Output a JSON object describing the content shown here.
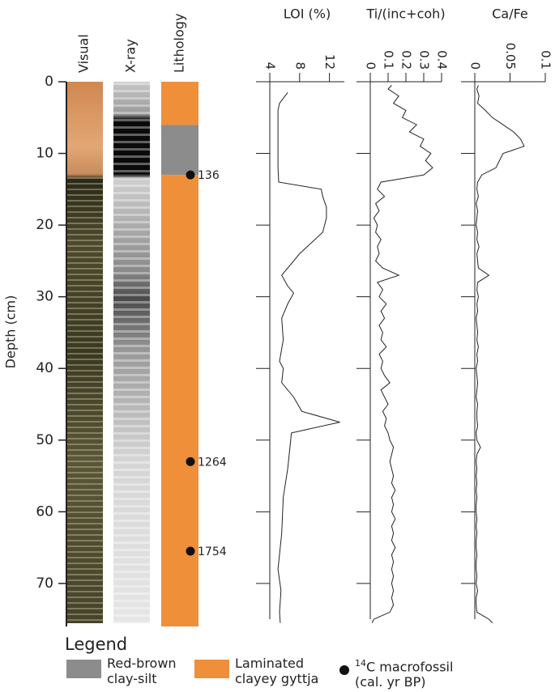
{
  "depth_axis": {
    "label": "Depth (cm)",
    "ylim": [
      0,
      76
    ],
    "yticks": [
      0,
      10,
      20,
      30,
      40,
      50,
      60,
      70
    ]
  },
  "core_columns": [
    "Visual",
    "X-ray",
    "Lithology"
  ],
  "lithology": {
    "classes": [
      {
        "name": "Red-brown clay-silt",
        "color": "#8c8c8c",
        "intervals": [
          [
            6,
            13
          ]
        ]
      },
      {
        "name": "Laminated clayey gyttja",
        "color": "#ef8f3a",
        "intervals": [
          [
            0,
            6
          ],
          [
            13,
            76
          ]
        ]
      }
    ]
  },
  "dates": {
    "label_superscript": "14",
    "label": "C macrofossil",
    "label_units": "(cal. yr BP)",
    "depths": [
      13,
      53,
      65.5
    ],
    "ages": [
      "136",
      "1264",
      "1754"
    ]
  },
  "legend": {
    "title": "Legend"
  },
  "chart_data": [
    {
      "type": "line",
      "title": "LOI (%)",
      "xlim": [
        4,
        14
      ],
      "xticks": [
        4,
        8,
        12
      ],
      "color": "#222222",
      "depth": [
        1.5,
        3,
        4,
        8,
        12,
        14,
        15,
        16,
        17.5,
        19,
        21,
        24,
        27,
        28.5,
        29.5,
        31,
        33,
        36,
        39,
        40,
        42,
        44,
        46,
        47.5,
        49,
        54,
        58,
        63,
        68,
        71,
        74,
        75.5
      ],
      "values": [
        6.4,
        5.3,
        5.1,
        5.1,
        5.1,
        5.2,
        10.9,
        11.1,
        11.6,
        11.6,
        11.1,
        8,
        5.6,
        6.4,
        7.2,
        6.4,
        5.6,
        5.8,
        5.3,
        5.8,
        5.6,
        7.2,
        8.3,
        13.4,
        6.9,
        6.4,
        5.8,
        5.6,
        5.1,
        5.5,
        5.3,
        5.4
      ]
    },
    {
      "type": "line",
      "title": "Ti/(inc+coh)",
      "xlim": [
        0,
        0.4
      ],
      "xticks": [
        0,
        0.1,
        0.2,
        0.3,
        0.4
      ],
      "color": "#222222",
      "depth": [
        0.5,
        1,
        2,
        3,
        4,
        5,
        6,
        7,
        8,
        9,
        10,
        11,
        12,
        13,
        14,
        15,
        16,
        17,
        18,
        19,
        20,
        21,
        22,
        23,
        24,
        25,
        26,
        27,
        28,
        29,
        30,
        31,
        32,
        33,
        34,
        35,
        36,
        37,
        38,
        39,
        40,
        41,
        42,
        43,
        44,
        45,
        46,
        47,
        48,
        49,
        50,
        51,
        52,
        53,
        54,
        55,
        56,
        57,
        58,
        59,
        60,
        61,
        62,
        63,
        64,
        65,
        66,
        67,
        68,
        69,
        70,
        71,
        72,
        73,
        74,
        75,
        75.5
      ],
      "values": [
        0.12,
        0.1,
        0.16,
        0.13,
        0.2,
        0.18,
        0.26,
        0.22,
        0.3,
        0.28,
        0.34,
        0.31,
        0.35,
        0.3,
        0.06,
        0.04,
        0.08,
        0.03,
        0.05,
        0.02,
        0.04,
        0.03,
        0.06,
        0.04,
        0.05,
        0.03,
        0.07,
        0.16,
        0.04,
        0.07,
        0.05,
        0.09,
        0.06,
        0.08,
        0.05,
        0.07,
        0.06,
        0.09,
        0.05,
        0.07,
        0.06,
        0.08,
        0.11,
        0.06,
        0.08,
        0.1,
        0.07,
        0.09,
        0.08,
        0.1,
        0.11,
        0.13,
        0.12,
        0.11,
        0.12,
        0.13,
        0.12,
        0.14,
        0.12,
        0.13,
        0.12,
        0.14,
        0.12,
        0.13,
        0.12,
        0.14,
        0.12,
        0.13,
        0.12,
        0.13,
        0.12,
        0.13,
        0.12,
        0.13,
        0.11,
        0.02,
        0.01
      ]
    },
    {
      "type": "line",
      "title": "Ca/Fe",
      "xlim": [
        0,
        0.1
      ],
      "xticks": [
        0,
        0.05,
        0.1
      ],
      "color": "#222222",
      "depth": [
        0.5,
        1,
        2,
        3,
        4,
        5,
        6,
        7,
        8,
        9,
        10,
        11,
        12,
        13,
        14,
        15,
        16,
        17,
        18,
        19,
        20,
        21,
        22,
        23,
        24,
        25,
        26,
        27,
        28,
        29,
        30,
        31,
        32,
        33,
        34,
        35,
        36,
        37,
        38,
        39,
        40,
        41,
        42,
        43,
        44,
        45,
        46,
        47,
        48,
        49,
        50,
        51,
        52,
        53,
        54,
        55,
        56,
        57,
        58,
        59,
        60,
        61,
        62,
        63,
        64,
        65,
        66,
        67,
        68,
        69,
        70,
        71,
        72,
        73,
        74,
        75,
        75.5
      ],
      "values": [
        0.005,
        0.003,
        0.006,
        0.004,
        0.015,
        0.025,
        0.04,
        0.055,
        0.065,
        0.07,
        0.04,
        0.035,
        0.03,
        0.01,
        0.004,
        0.003,
        0.005,
        0.002,
        0.004,
        0.003,
        0.002,
        0.004,
        0.003,
        0.006,
        0.003,
        0.004,
        0.005,
        0.02,
        0.004,
        0.003,
        0.005,
        0.003,
        0.004,
        0.002,
        0.003,
        0.004,
        0.003,
        0.005,
        0.003,
        0.004,
        0.002,
        0.003,
        0.004,
        0.003,
        0.002,
        0.004,
        0.003,
        0.003,
        0.004,
        0.002,
        0.003,
        0.008,
        0.003,
        0.002,
        0.003,
        0.002,
        0.003,
        0.002,
        0.003,
        0.002,
        0.002,
        0.003,
        0.002,
        0.003,
        0.002,
        0.002,
        0.003,
        0.002,
        0.002,
        0.003,
        0.002,
        0.004,
        0.002,
        0.002,
        0.003,
        0.02,
        0.025
      ]
    }
  ]
}
